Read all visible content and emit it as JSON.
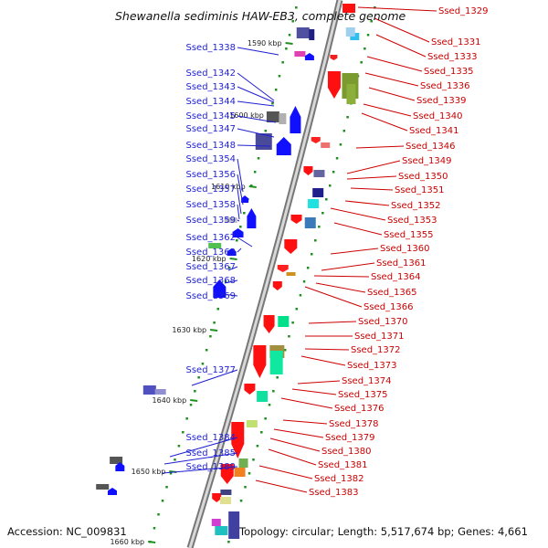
{
  "title": "Shewanella sediminis HAW-EB3, complete genome",
  "accession": "Accession: NC_009831",
  "summary": "Topology: circular; Length: 5,517,674 bp; Genes: 4,661",
  "colors": {
    "left_label": "#1f1fd0",
    "right_label": "#cc0000",
    "backbone": "#8c8c8c",
    "tick": "#1f8f1f"
  },
  "kbp_marks": [
    "1590 kbp",
    "1600 kbp",
    "1610 kbp",
    "1620 kbp",
    "1630 kbp",
    "1640 kbp",
    "1650 kbp",
    "1660 kbp"
  ],
  "left_genes": [
    "Ssed_1338",
    "Ssed_1342",
    "Ssed_1343",
    "Ssed_1344",
    "Ssed_1345",
    "Ssed_1347",
    "Ssed_1348",
    "Ssed_1354",
    "Ssed_1356",
    "Ssed_1357",
    "Ssed_1358",
    "Ssed_1359",
    "Ssed_1362",
    "Ssed_1363",
    "Ssed_1367",
    "Ssed_1368",
    "Ssed_1369",
    "Ssed_1377",
    "Ssed_1384",
    "Ssed_1385",
    "Ssed_1389"
  ],
  "right_genes": [
    "Ssed_1329",
    "Ssed_1331",
    "Ssed_1333",
    "Ssed_1335",
    "Ssed_1336",
    "Ssed_1339",
    "Ssed_1340",
    "Ssed_1341",
    "Ssed_1346",
    "Ssed_1349",
    "Ssed_1350",
    "Ssed_1351",
    "Ssed_1352",
    "Ssed_1353",
    "Ssed_1355",
    "Ssed_1360",
    "Ssed_1361",
    "Ssed_1364",
    "Ssed_1365",
    "Ssed_1366",
    "Ssed_1370",
    "Ssed_1371",
    "Ssed_1372",
    "Ssed_1373",
    "Ssed_1374",
    "Ssed_1375",
    "Ssed_1376",
    "Ssed_1378",
    "Ssed_1379",
    "Ssed_1380",
    "Ssed_1381",
    "Ssed_1382",
    "Ssed_1383"
  ]
}
